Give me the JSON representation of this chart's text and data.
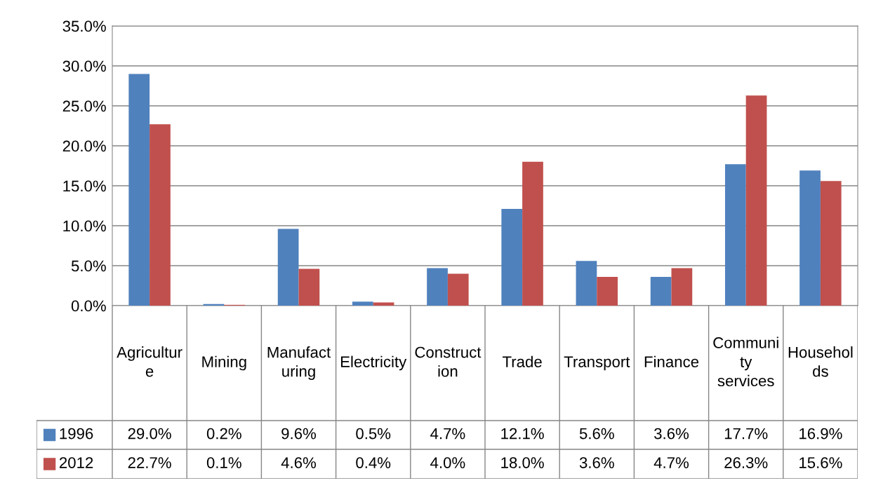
{
  "chart_data": {
    "type": "bar",
    "categories": [
      "Agriculture",
      "Mining",
      "Manufacturing",
      "Electricity",
      "Construction",
      "Trade",
      "Transport",
      "Finance",
      "Community services",
      "Households"
    ],
    "series": [
      {
        "name": "1996",
        "color": "#4f81bd",
        "values": [
          29.0,
          0.2,
          9.6,
          0.5,
          4.7,
          12.1,
          5.6,
          3.6,
          17.7,
          16.9
        ],
        "value_labels": [
          "29.0%",
          "0.2%",
          "9.6%",
          "0.5%",
          "4.7%",
          "12.1%",
          "5.6%",
          "3.6%",
          "17.7%",
          "16.9%"
        ]
      },
      {
        "name": "2012",
        "color": "#c0504d",
        "values": [
          22.7,
          0.1,
          4.6,
          0.4,
          4.0,
          18.0,
          3.6,
          4.7,
          26.3,
          15.6
        ],
        "value_labels": [
          "22.7%",
          "0.1%",
          "4.6%",
          "0.4%",
          "4.0%",
          "18.0%",
          "3.6%",
          "4.7%",
          "26.3%",
          "15.6%"
        ]
      }
    ],
    "ylim": [
      0,
      35
    ],
    "yticks": [
      {
        "value": 0,
        "label": "0.0%"
      },
      {
        "value": 5,
        "label": "5.0%"
      },
      {
        "value": 10,
        "label": "10.0%"
      },
      {
        "value": 15,
        "label": "15.0%"
      },
      {
        "value": 20,
        "label": "20.0%"
      },
      {
        "value": 25,
        "label": "25.0%"
      },
      {
        "value": 30,
        "label": "30.0%"
      },
      {
        "value": 35,
        "label": "35.0%"
      }
    ],
    "grid": "y",
    "legend": "bottom"
  }
}
